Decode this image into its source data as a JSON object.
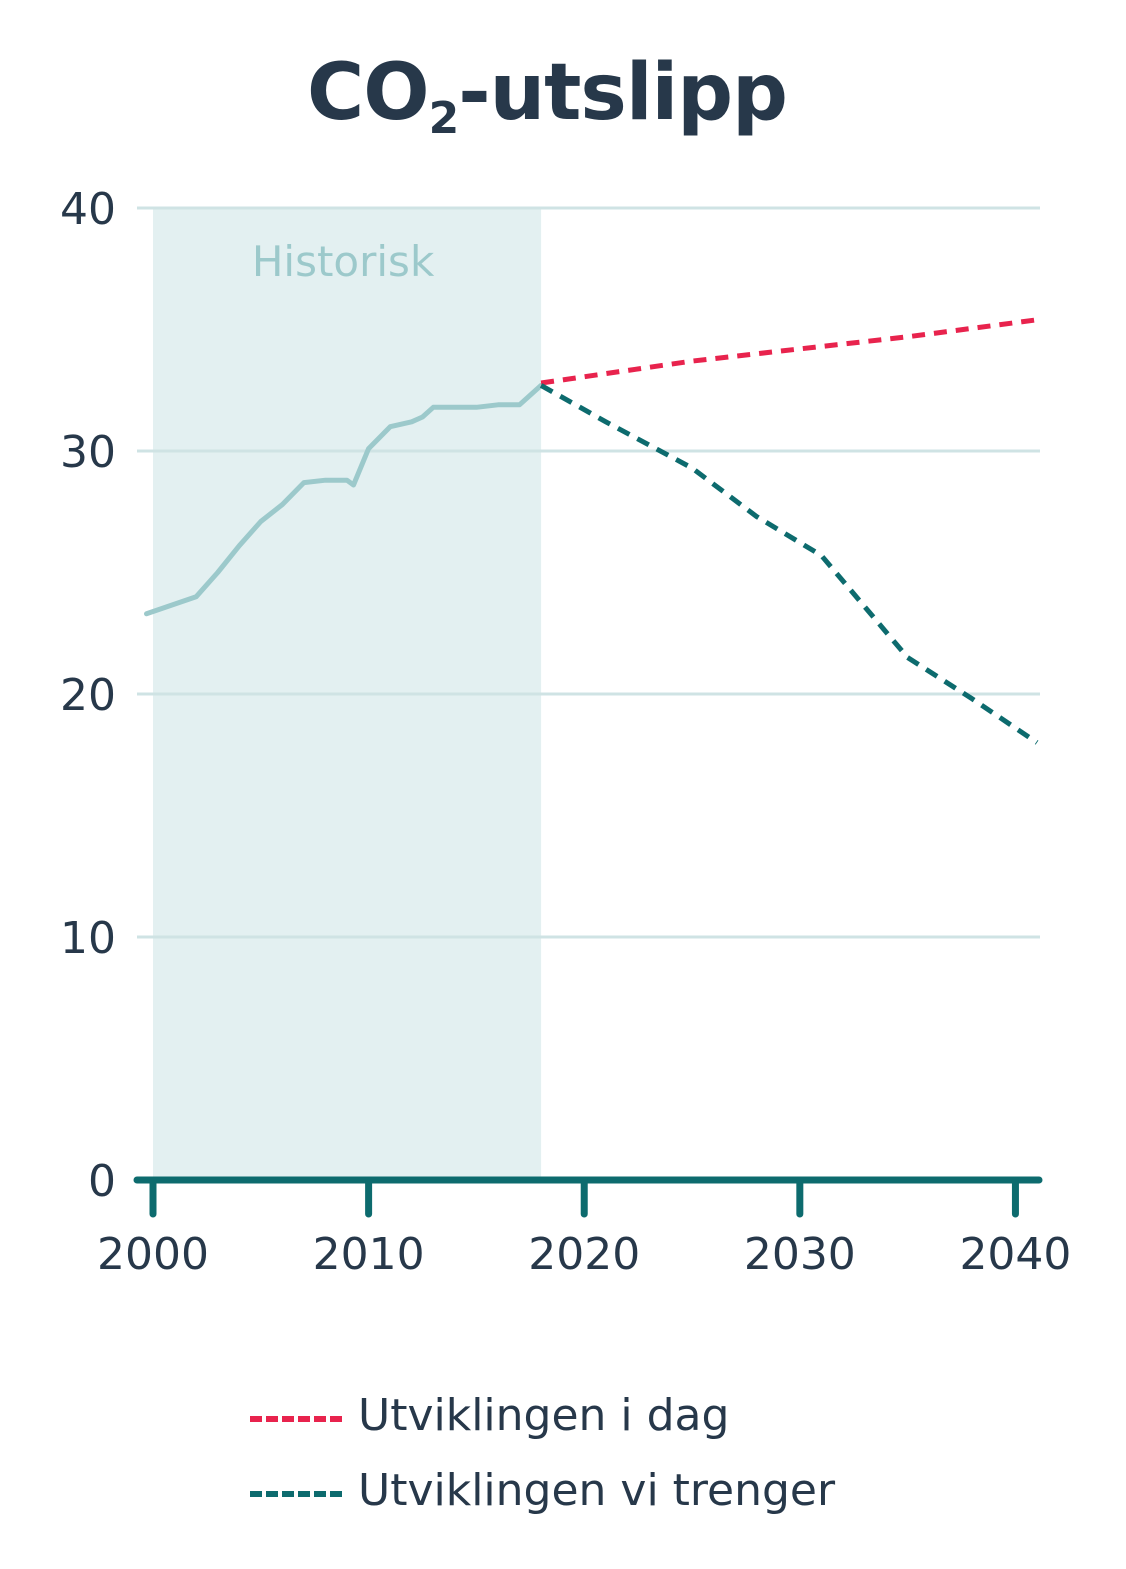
{
  "chart_data": {
    "type": "line",
    "title": "CO₂-utslipp",
    "title_main": "CO",
    "title_sub": "2",
    "title_rest": "-utslipp",
    "shaded_region": {
      "label": "Historisk",
      "x_range": [
        2000,
        2018
      ]
    },
    "xlim": [
      2000,
      2041
    ],
    "ylim": [
      0,
      40
    ],
    "x_ticks": [
      2000,
      2010,
      2020,
      2030,
      2040
    ],
    "y_ticks": [
      0,
      10,
      20,
      30,
      40
    ],
    "grid": true,
    "legend_position": "bottom",
    "series": [
      {
        "key": "historical",
        "style": "solid",
        "color": "#9cc9cb",
        "x": [
          1999.7,
          2002,
          2003,
          2004,
          2005,
          2006,
          2007,
          2008,
          2009,
          2009.3,
          2010,
          2011,
          2012,
          2012.5,
          2013,
          2014,
          2015,
          2016,
          2017,
          2018
        ],
        "y": [
          23.3,
          24.0,
          25.0,
          26.1,
          27.1,
          27.8,
          28.7,
          28.8,
          28.8,
          28.6,
          30.1,
          31.0,
          31.2,
          31.4,
          31.8,
          31.8,
          31.8,
          31.9,
          31.9,
          32.7
        ]
      },
      {
        "key": "current",
        "name": "Utviklingen i dag",
        "style": "dashed",
        "color": "#e8234d",
        "x": [
          2018,
          2025,
          2030,
          2035,
          2041
        ],
        "y": [
          32.8,
          33.7,
          34.2,
          34.7,
          35.4
        ]
      },
      {
        "key": "needed",
        "name": "Utviklingen vi trenger",
        "style": "dashed",
        "color": "#0d6b6e",
        "x": [
          2018,
          2021,
          2025,
          2028,
          2031,
          2035,
          2038,
          2041
        ],
        "y": [
          32.7,
          31.2,
          29.3,
          27.3,
          25.7,
          21.5,
          19.8,
          18.0
        ]
      }
    ]
  },
  "colors": {
    "text": "#27384a",
    "grid": "#cfe3e4",
    "shade": "#e3f0f1",
    "shade_label": "#9cc9cb",
    "axis": "#0d6b6e"
  }
}
